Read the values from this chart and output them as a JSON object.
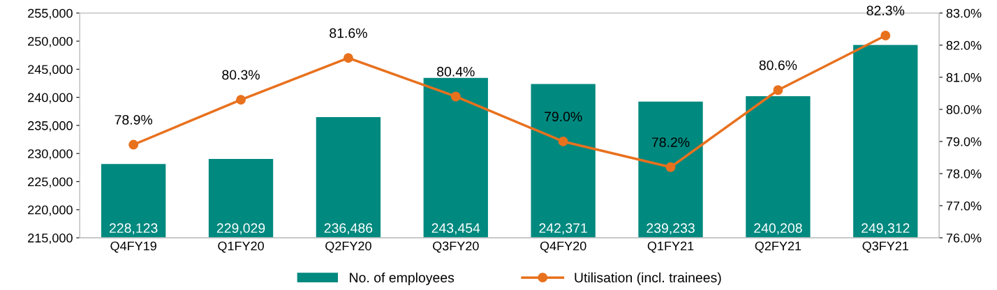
{
  "chart_data": {
    "type": "bar",
    "categories": [
      "Q4FY19",
      "Q1FY20",
      "Q2FY20",
      "Q3FY20",
      "Q4FY20",
      "Q1FY21",
      "Q2FY21",
      "Q3FY21"
    ],
    "series": [
      {
        "name": "No. of employees",
        "color": "#00897f",
        "values": [
          228123,
          229029,
          236486,
          243454,
          242371,
          239233,
          240208,
          249312
        ],
        "value_labels": [
          "228,123",
          "229,029",
          "236,486",
          "243,454",
          "242,371",
          "239,233",
          "240,208",
          "249,312"
        ]
      },
      {
        "name": "Utilisation (incl. trainees)",
        "type": "line",
        "axis": "y2",
        "color": "#e8711e",
        "marker": "circle",
        "values": [
          78.9,
          80.3,
          81.6,
          80.4,
          79.0,
          78.2,
          80.6,
          82.3
        ],
        "value_labels": [
          "78.9%",
          "80.3%",
          "81.6%",
          "80.4%",
          "79.0%",
          "78.2%",
          "80.6%",
          "82.3%"
        ]
      }
    ],
    "ylim": [
      215000,
      255000
    ],
    "yticks": [
      {
        "value": 215000,
        "label": "215,000"
      },
      {
        "value": 220000,
        "label": "220,000"
      },
      {
        "value": 225000,
        "label": "225,000"
      },
      {
        "value": 230000,
        "label": "230,000"
      },
      {
        "value": 235000,
        "label": "235,000"
      },
      {
        "value": 240000,
        "label": "240,000"
      },
      {
        "value": 245000,
        "label": "245,000"
      },
      {
        "value": 250000,
        "label": "250,000"
      },
      {
        "value": 255000,
        "label": "255,000"
      }
    ],
    "y2lim": [
      76,
      83
    ],
    "y2ticks": [
      {
        "value": 76,
        "label": "76.0%"
      },
      {
        "value": 77,
        "label": "77.0%"
      },
      {
        "value": 78,
        "label": "78.0%"
      },
      {
        "value": 79,
        "label": "79.0%"
      },
      {
        "value": 80,
        "label": "80.0%"
      },
      {
        "value": 81,
        "label": "81.0%"
      },
      {
        "value": 82,
        "label": "82.0%"
      },
      {
        "value": 83,
        "label": "83.0%"
      }
    ],
    "grid": false,
    "legend": "bottom"
  }
}
